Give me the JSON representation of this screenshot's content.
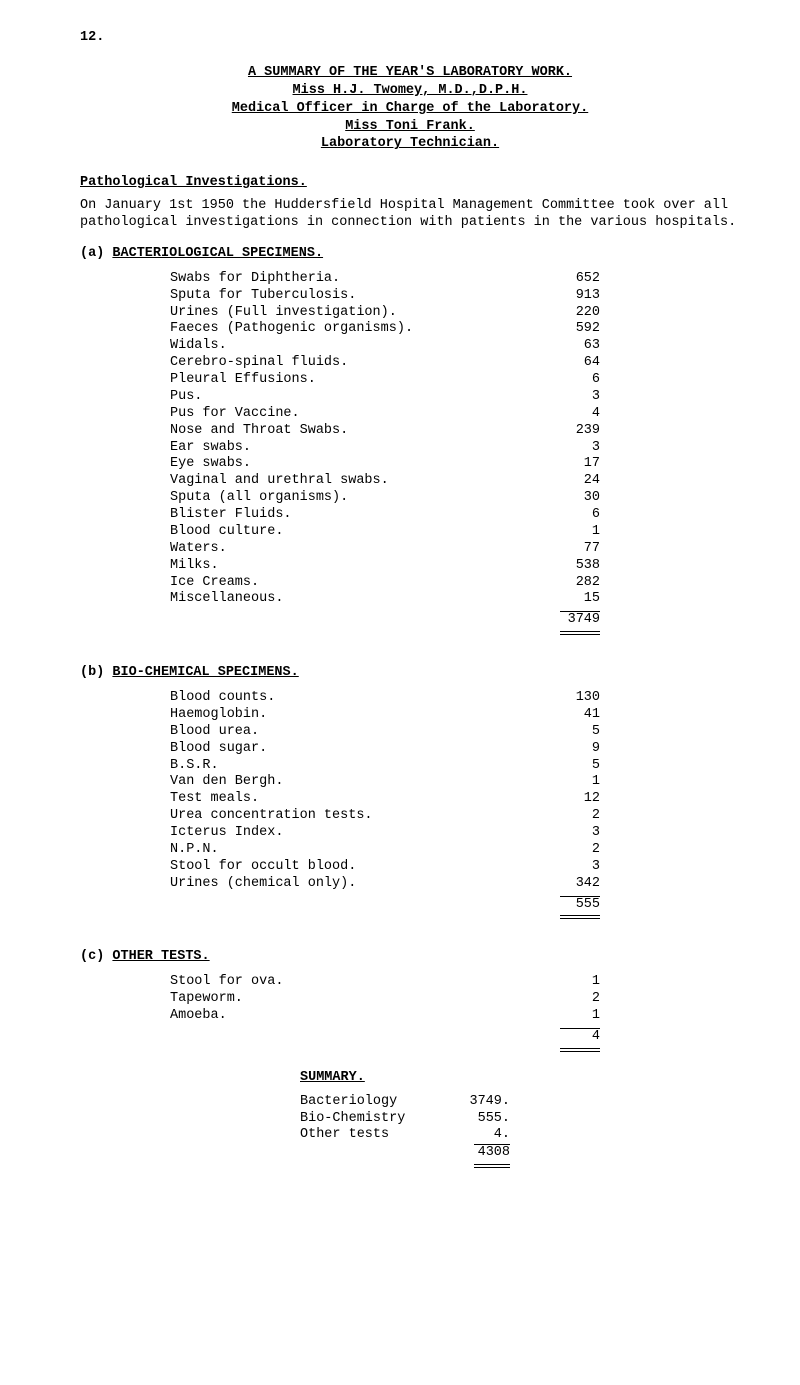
{
  "page_number": "12.",
  "title": {
    "line1": "A   SUMMARY   OF   THE   YEAR'S   LABORATORY   WORK.",
    "line2": "Miss H.J. Twomey, M.D.,D.P.H.",
    "line3": "Medical Officer in Charge of the Laboratory.",
    "line4": "Miss Toni Frank.",
    "line5": "Laboratory Technician."
  },
  "path_invest_head": "Pathological Investigations.",
  "intro": "On January 1st 1950 the Huddersfield Hospital Management Committee took over all pathological investigations in connection with patients in the various hospitals.",
  "section_a": {
    "head": "(a) BACTERIOLOGICAL SPECIMENS.",
    "items": [
      {
        "label": "Swabs for Diphtheria.",
        "val": "652"
      },
      {
        "label": "Sputa for Tuberculosis.",
        "val": "913"
      },
      {
        "label": "Urines (Full investigation).",
        "val": "220"
      },
      {
        "label": "Faeces (Pathogenic organisms).",
        "val": "592"
      },
      {
        "label": "Widals.",
        "val": "63"
      },
      {
        "label": "Cerebro-spinal fluids.",
        "val": "64"
      },
      {
        "label": "Pleural Effusions.",
        "val": "6"
      },
      {
        "label": "Pus.",
        "val": "3"
      },
      {
        "label": "Pus for Vaccine.",
        "val": "4"
      },
      {
        "label": "Nose and Throat Swabs.",
        "val": "239"
      },
      {
        "label": "Ear swabs.",
        "val": "3"
      },
      {
        "label": "Eye swabs.",
        "val": "17"
      },
      {
        "label": "Vaginal and urethral swabs.",
        "val": "24"
      },
      {
        "label": "Sputa (all organisms).",
        "val": "30"
      },
      {
        "label": "Blister Fluids.",
        "val": "6"
      },
      {
        "label": "Blood culture.",
        "val": "1"
      },
      {
        "label": "Waters.",
        "val": "77"
      },
      {
        "label": "Milks.",
        "val": "538"
      },
      {
        "label": "Ice Creams.",
        "val": "282"
      },
      {
        "label": "Miscellaneous.",
        "val": "15"
      }
    ],
    "total": "3749"
  },
  "section_b": {
    "head": "(b) BIO-CHEMICAL SPECIMENS.",
    "items": [
      {
        "label": "Blood counts.",
        "val": "130"
      },
      {
        "label": "Haemoglobin.",
        "val": "41"
      },
      {
        "label": "Blood urea.",
        "val": "5"
      },
      {
        "label": "Blood sugar.",
        "val": "9"
      },
      {
        "label": "B.S.R.",
        "val": "5"
      },
      {
        "label": "Van den Bergh.",
        "val": "1"
      },
      {
        "label": "Test meals.",
        "val": "12"
      },
      {
        "label": "Urea concentration tests.",
        "val": "2"
      },
      {
        "label": "Icterus Index.",
        "val": "3"
      },
      {
        "label": "N.P.N.",
        "val": "2"
      },
      {
        "label": "Stool for occult blood.",
        "val": "3"
      },
      {
        "label": "Urines (chemical only).",
        "val": "342"
      }
    ],
    "total": "555"
  },
  "section_c": {
    "head": "(c) OTHER TESTS.",
    "items": [
      {
        "label": "Stool for ova.",
        "val": "1"
      },
      {
        "label": "Tapeworm.",
        "val": "2"
      },
      {
        "label": "Amoeba.",
        "val": "1"
      }
    ],
    "total": "4"
  },
  "summary": {
    "head": "SUMMARY.",
    "items": [
      {
        "label": "Bacteriology",
        "val": "3749."
      },
      {
        "label": "Bio-Chemistry",
        "val": "555."
      },
      {
        "label": "Other tests",
        "val": "4."
      }
    ],
    "total": "4308"
  }
}
